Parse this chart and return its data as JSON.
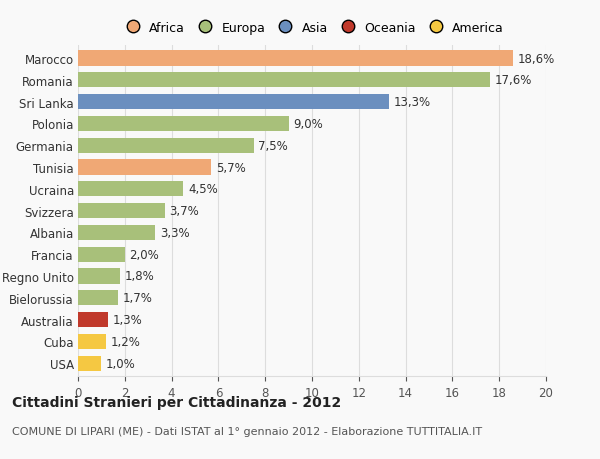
{
  "categories": [
    "Marocco",
    "Romania",
    "Sri Lanka",
    "Polonia",
    "Germania",
    "Tunisia",
    "Ucraina",
    "Svizzera",
    "Albania",
    "Francia",
    "Regno Unito",
    "Bielorussia",
    "Australia",
    "Cuba",
    "USA"
  ],
  "values": [
    18.6,
    17.6,
    13.3,
    9.0,
    7.5,
    5.7,
    4.5,
    3.7,
    3.3,
    2.0,
    1.8,
    1.7,
    1.3,
    1.2,
    1.0
  ],
  "bar_colors": [
    "#f0a875",
    "#a8c07a",
    "#6b8fbf",
    "#a8c07a",
    "#a8c07a",
    "#f0a875",
    "#a8c07a",
    "#a8c07a",
    "#a8c07a",
    "#a8c07a",
    "#a8c07a",
    "#a8c07a",
    "#c0392b",
    "#f5c842",
    "#f5c842"
  ],
  "legend_labels": [
    "Africa",
    "Europa",
    "Asia",
    "Oceania",
    "America"
  ],
  "legend_colors": [
    "#f0a875",
    "#a8c07a",
    "#6b8fbf",
    "#c0392b",
    "#f5c842"
  ],
  "title": "Cittadini Stranieri per Cittadinanza - 2012",
  "subtitle": "COMUNE DI LIPARI (ME) - Dati ISTAT al 1° gennaio 2012 - Elaborazione TUTTITALIA.IT",
  "xlim": [
    0,
    20
  ],
  "xticks": [
    0,
    2,
    4,
    6,
    8,
    10,
    12,
    14,
    16,
    18,
    20
  ],
  "background_color": "#f9f9f9",
  "grid_color": "#dddddd",
  "title_fontsize": 10,
  "subtitle_fontsize": 8,
  "label_fontsize": 8.5,
  "value_fontsize": 8.5
}
